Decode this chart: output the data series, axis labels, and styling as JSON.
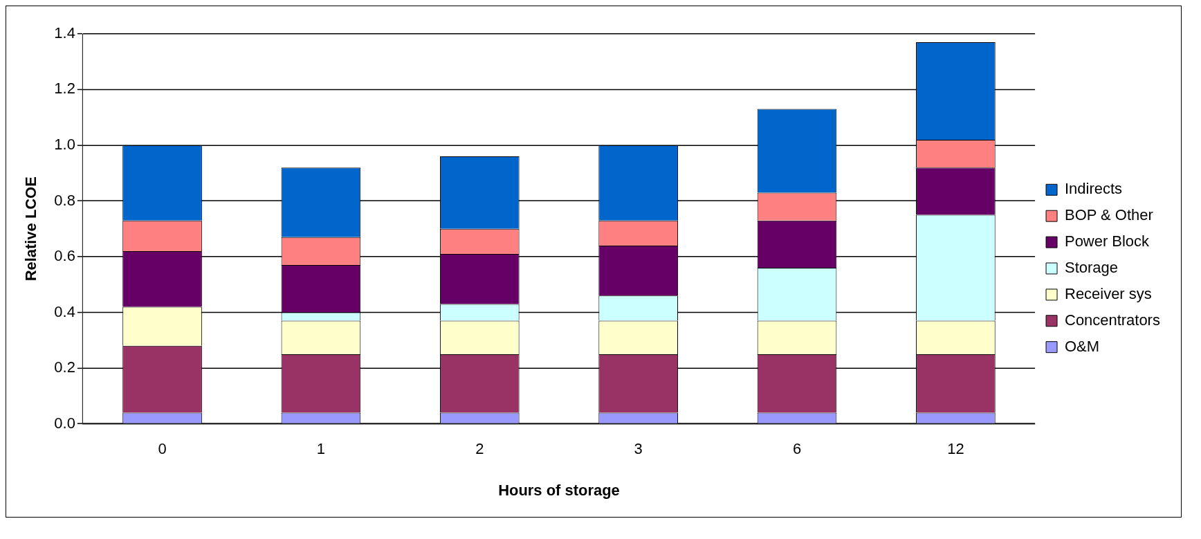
{
  "chart_data": {
    "type": "bar",
    "stacked": true,
    "xlabel": "Hours of storage",
    "ylabel": "Relative LCOE",
    "categories": [
      "0",
      "1",
      "2",
      "3",
      "6",
      "12"
    ],
    "series": [
      {
        "name": "O&M",
        "color": "#9999ff",
        "values": [
          0.04,
          0.04,
          0.04,
          0.04,
          0.04,
          0.04
        ]
      },
      {
        "name": "Concentrators",
        "color": "#993366",
        "values": [
          0.24,
          0.21,
          0.21,
          0.21,
          0.21,
          0.21
        ]
      },
      {
        "name": "Receiver sys",
        "color": "#ffffcc",
        "values": [
          0.14,
          0.12,
          0.12,
          0.12,
          0.12,
          0.12
        ]
      },
      {
        "name": "Storage",
        "color": "#ccffff",
        "values": [
          0,
          0.03,
          0.06,
          0.09,
          0.19,
          0.38
        ]
      },
      {
        "name": "Power Block",
        "color": "#660066",
        "values": [
          0.2,
          0.17,
          0.18,
          0.18,
          0.17,
          0.17
        ]
      },
      {
        "name": "BOP & Other",
        "color": "#ff8080",
        "values": [
          0.11,
          0.1,
          0.09,
          0.09,
          0.1,
          0.1
        ]
      },
      {
        "name": "Indirects",
        "color": "#0066cc",
        "values": [
          0.27,
          0.25,
          0.26,
          0.27,
          0.3,
          0.35
        ]
      }
    ],
    "ylim": [
      0,
      1.4
    ],
    "yticks": [
      {
        "value": 0,
        "label": "0.0"
      },
      0.2,
      0.4,
      0.6,
      0.8,
      {
        "value": 1,
        "label": "1.0"
      },
      1.2,
      1.4
    ],
    "grid": "y",
    "legend": "right"
  }
}
